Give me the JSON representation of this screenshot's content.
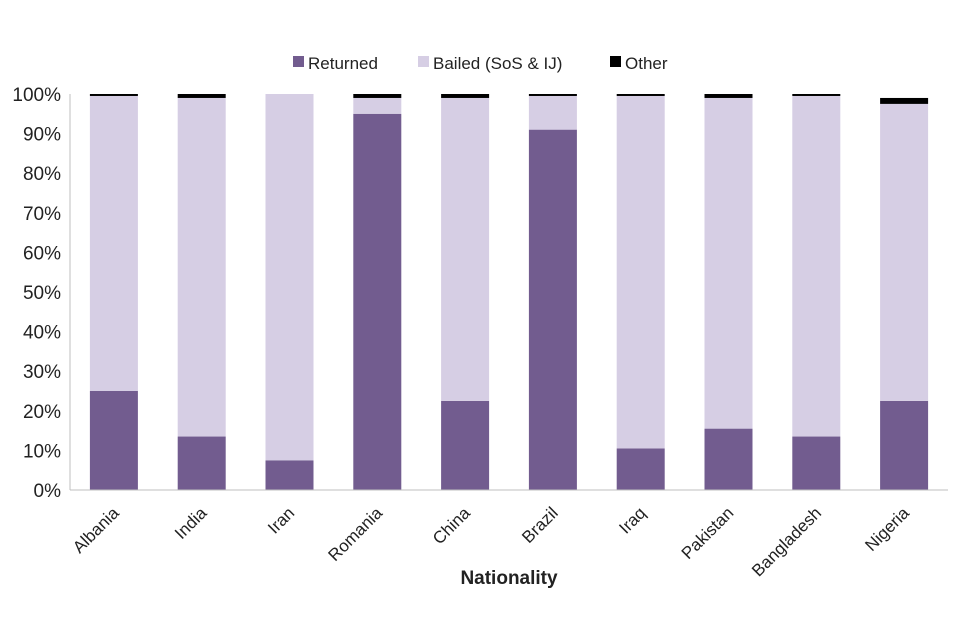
{
  "chart_data": {
    "type": "bar",
    "stacked": true,
    "percent_scale": true,
    "title": "",
    "xlabel": "Nationality",
    "ylabel": "",
    "ylim": [
      0,
      100
    ],
    "y_ticks": [
      "0%",
      "10%",
      "20%",
      "30%",
      "40%",
      "50%",
      "60%",
      "70%",
      "80%",
      "90%",
      "100%"
    ],
    "grid": false,
    "legend_position": "top",
    "categories": [
      "Albania",
      "India",
      "Iran",
      "Romania",
      "China",
      "Brazil",
      "Iraq",
      "Pakistan",
      "Bangladesh",
      "Nigeria"
    ],
    "series": [
      {
        "name": "Returned",
        "color": "#725c8f",
        "values": [
          25,
          13.5,
          7.5,
          95,
          22.5,
          91,
          10.5,
          15.5,
          13.5,
          22.5
        ]
      },
      {
        "name": "Bailed (SoS & IJ)",
        "color": "#d6cee4",
        "values": [
          74.5,
          85.5,
          92.5,
          4,
          76.5,
          8.5,
          89,
          83.5,
          86,
          75
        ]
      },
      {
        "name": "Other",
        "color": "#000000",
        "values": [
          0.5,
          1,
          0,
          1,
          1,
          0.5,
          0.5,
          1,
          0.5,
          1.5
        ]
      }
    ]
  }
}
